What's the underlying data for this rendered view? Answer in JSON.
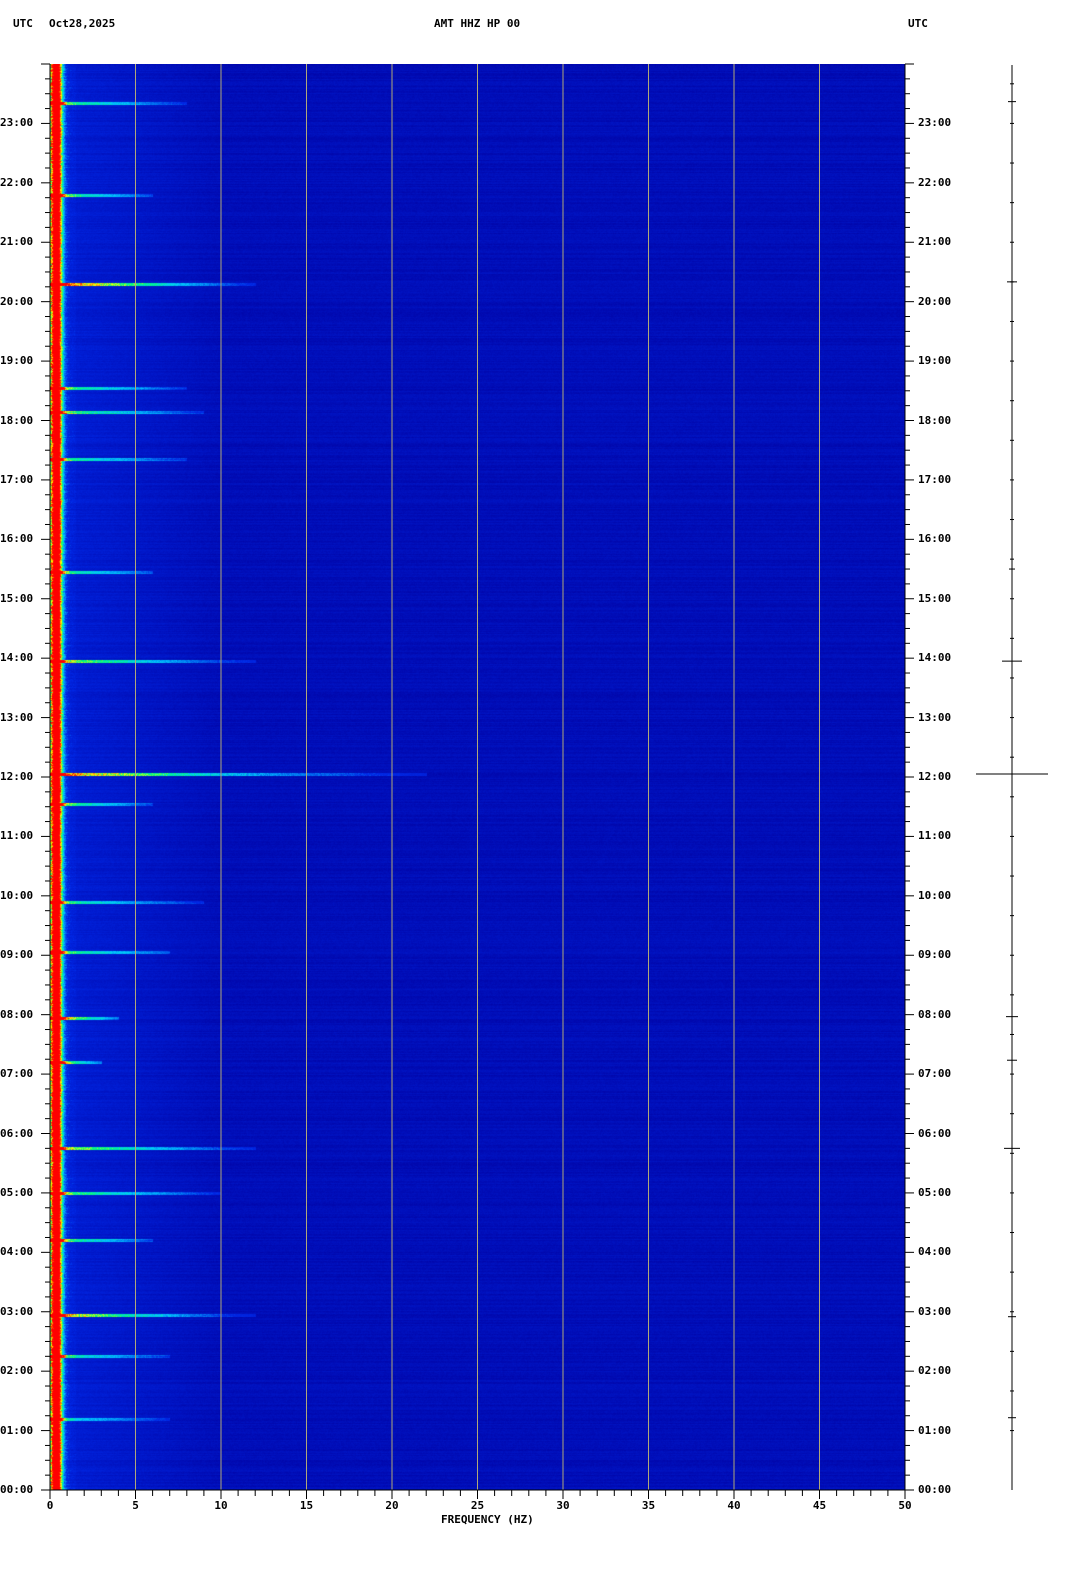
{
  "header": {
    "left_tz": "UTC",
    "date": "Oct28,2025",
    "title": "AMT HHZ HP 00",
    "right_tz": "UTC"
  },
  "chart_data": {
    "type": "heatmap",
    "title": "AMT HHZ HP 00",
    "xlabel": "FREQUENCY (HZ)",
    "ylabel": "",
    "xlim": [
      0,
      50
    ],
    "ylim_hours": [
      0,
      24
    ],
    "x_ticks": [
      "0",
      "5",
      "10",
      "15",
      "20",
      "25",
      "30",
      "35",
      "40",
      "45",
      "50"
    ],
    "y_ticks": [
      "00:00",
      "01:00",
      "02:00",
      "03:00",
      "04:00",
      "05:00",
      "06:00",
      "07:00",
      "08:00",
      "09:00",
      "10:00",
      "11:00",
      "12:00",
      "13:00",
      "14:00",
      "15:00",
      "16:00",
      "17:00",
      "18:00",
      "19:00",
      "20:00",
      "21:00",
      "22:00",
      "23:00"
    ],
    "grid": true,
    "colors": {
      "background": "#0000a8",
      "grid": "#b0a878",
      "low": "#0000a0",
      "high": "#ff0000"
    },
    "events": [
      {
        "time": "23:21",
        "max_hz": 8,
        "strength": 0.6
      },
      {
        "time": "21:48",
        "max_hz": 6,
        "strength": 0.6
      },
      {
        "time": "20:18",
        "max_hz": 12,
        "strength": 1.0
      },
      {
        "time": "18:33",
        "max_hz": 8,
        "strength": 0.6
      },
      {
        "time": "18:09",
        "max_hz": 9,
        "strength": 0.6
      },
      {
        "time": "17:21",
        "max_hz": 8,
        "strength": 0.5
      },
      {
        "time": "15:27",
        "max_hz": 6,
        "strength": 0.5
      },
      {
        "time": "13:57",
        "max_hz": 12,
        "strength": 0.7
      },
      {
        "time": "12:03",
        "max_hz": 22,
        "strength": 1.0
      },
      {
        "time": "11:33",
        "max_hz": 6,
        "strength": 0.6
      },
      {
        "time": "09:54",
        "max_hz": 9,
        "strength": 0.5
      },
      {
        "time": "09:03",
        "max_hz": 7,
        "strength": 0.5
      },
      {
        "time": "07:57",
        "max_hz": 4,
        "strength": 0.9
      },
      {
        "time": "07:12",
        "max_hz": 3,
        "strength": 0.8
      },
      {
        "time": "05:45",
        "max_hz": 12,
        "strength": 0.7
      },
      {
        "time": "05:00",
        "max_hz": 10,
        "strength": 0.6
      },
      {
        "time": "04:12",
        "max_hz": 6,
        "strength": 0.6
      },
      {
        "time": "02:57",
        "max_hz": 12,
        "strength": 0.9
      },
      {
        "time": "02:15",
        "max_hz": 7,
        "strength": 0.5
      },
      {
        "time": "01:12",
        "max_hz": 7,
        "strength": 0.4
      }
    ],
    "trace_events": [
      {
        "time": "23:22",
        "amp": 4
      },
      {
        "time": "20:20",
        "amp": 5
      },
      {
        "time": "15:30",
        "amp": 3
      },
      {
        "time": "13:57",
        "amp": 10
      },
      {
        "time": "12:03",
        "amp": 36
      },
      {
        "time": "07:58",
        "amp": 6
      },
      {
        "time": "07:14",
        "amp": 5
      },
      {
        "time": "05:45",
        "amp": 8
      },
      {
        "time": "02:55",
        "amp": 4
      },
      {
        "time": "01:13",
        "amp": 4
      }
    ]
  }
}
